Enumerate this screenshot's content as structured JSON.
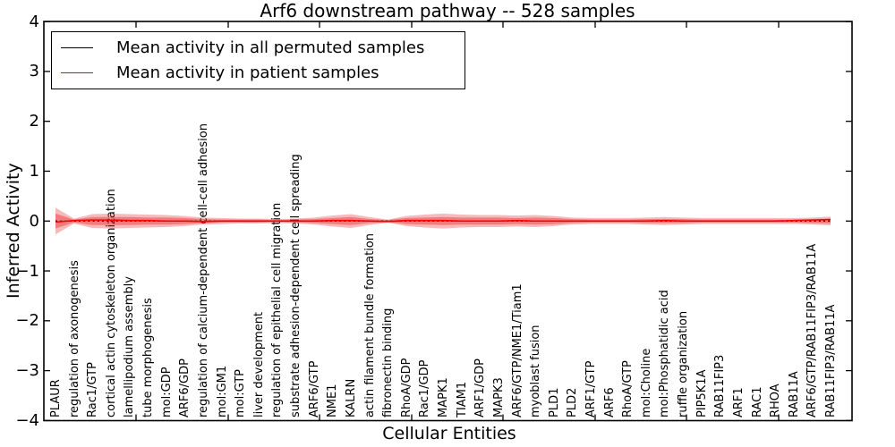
{
  "title": "Arf6 downstream pathway -- 528 samples",
  "axes": {
    "ylabel": "Inferred Activity",
    "xlabel": "Cellular Entities",
    "yticks": [
      "4",
      "3",
      "2",
      "1",
      "0",
      "−1",
      "−2",
      "−3",
      "−4"
    ]
  },
  "legend": {
    "items": [
      {
        "label": "Mean activity in all permuted samples",
        "color": "#000000"
      },
      {
        "label": "Mean activity in patient samples",
        "color": "#ff0000"
      }
    ]
  },
  "colors": {
    "permuted_line": "#000000",
    "patient_line": "#ff0000",
    "band": "#e41a1c",
    "frame": "#000000"
  },
  "chart_data": {
    "type": "line",
    "title": "Arf6 downstream pathway -- 528 samples",
    "xlabel": "Cellular Entities",
    "ylabel": "Inferred Activity",
    "ylim": [
      -4,
      4
    ],
    "grid": false,
    "legend_position": "upper left",
    "categories": [
      "PLAUR",
      "regulation of axonogenesis",
      "Rac1/GTP",
      "cortical actin cytoskeleton organization",
      "lamellipodium assembly",
      "tube morphogenesis",
      "mol:GDP",
      "ARF6/GDP",
      "regulation of calcium-dependent cell-cell adhesion",
      "mol:GM1",
      "mol:GTP",
      "liver development",
      "regulation of epithelial cell migration",
      "substrate adhesion-dependent cell spreading",
      "ARF6/GTP",
      "NME1",
      "KALRN",
      "actin filament bundle formation",
      "fibronectin binding",
      "RhoA/GDP",
      "Rac1/GDP",
      "MAPK1",
      "TIAM1",
      "ARF1/GDP",
      "MAPK3",
      "ARF6/GTP/NME1/Tiam1",
      "myoblast fusion",
      "PLD1",
      "PLD2",
      "ARF1/GTP",
      "ARF6",
      "RhoA/GTP",
      "mol:Choline",
      "mol:Phosphatidic acid",
      "ruffle organization",
      "PIP5K1A",
      "RAB11FIP3",
      "ARF1",
      "RAC1",
      "RHOA",
      "RAB11A",
      "ARF6/GTP/RAB11FIP3/RAB11A",
      "RAB11FIP3/RAB11A"
    ],
    "series": [
      {
        "name": "Mean activity in all permuted samples",
        "color": "#000000",
        "style": "dotted",
        "values": [
          0,
          0,
          0,
          0,
          0,
          0,
          0,
          0,
          0,
          0,
          0,
          0,
          0,
          0,
          0,
          0,
          0,
          0,
          0,
          0,
          0,
          0,
          0,
          0,
          0,
          0,
          0,
          0,
          0,
          0,
          0,
          0,
          0,
          0,
          0,
          0,
          0,
          0,
          0,
          0,
          0,
          0,
          0
        ]
      },
      {
        "name": "Mean activity in patient samples",
        "color": "#ff0000",
        "style": "solid",
        "values": [
          -0.02,
          0.01,
          0.02,
          0.02,
          0.01,
          0.01,
          0,
          0,
          -0.01,
          0,
          0,
          0,
          0,
          0,
          0,
          0.01,
          0.01,
          0,
          -0.01,
          0.01,
          0.01,
          0.01,
          0,
          0,
          0,
          0.01,
          0,
          0,
          0,
          0,
          0,
          0,
          0,
          0.01,
          0,
          0,
          0,
          0,
          0,
          0,
          0.01,
          0.02,
          0.03
        ]
      }
    ],
    "band_outer_halfwidth": [
      0.27,
      0.05,
      0.14,
      0.15,
      0.14,
      0.13,
      0.12,
      0.1,
      0.07,
      0.06,
      0.05,
      0.05,
      0.04,
      0.05,
      0.07,
      0.11,
      0.14,
      0.08,
      0.03,
      0.1,
      0.13,
      0.15,
      0.13,
      0.12,
      0.12,
      0.11,
      0.12,
      0.1,
      0.07,
      0.06,
      0.06,
      0.06,
      0.07,
      0.08,
      0.07,
      0.06,
      0.06,
      0.06,
      0.06,
      0.06,
      0.06,
      0.07,
      0.09
    ],
    "band_inner_halfwidth": [
      0.15,
      0.03,
      0.08,
      0.08,
      0.08,
      0.07,
      0.07,
      0.06,
      0.04,
      0.03,
      0.03,
      0.03,
      0.02,
      0.03,
      0.04,
      0.06,
      0.08,
      0.04,
      0.02,
      0.06,
      0.07,
      0.08,
      0.07,
      0.07,
      0.07,
      0.06,
      0.07,
      0.06,
      0.04,
      0.03,
      0.03,
      0.03,
      0.04,
      0.04,
      0.04,
      0.03,
      0.03,
      0.03,
      0.03,
      0.03,
      0.03,
      0.04,
      0.05
    ],
    "band_color": "#e41a1c"
  }
}
